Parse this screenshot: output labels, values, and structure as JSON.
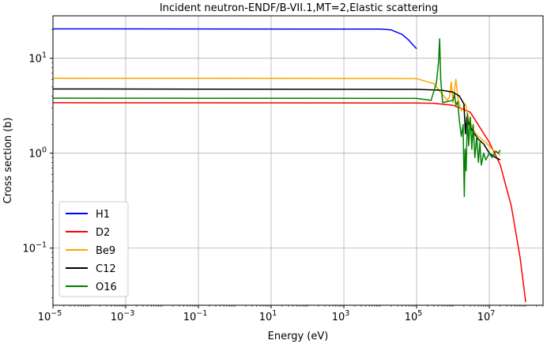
{
  "chart_data": {
    "type": "line",
    "title": "Incident neutron-ENDF/B-VII.1,MT=2,Elastic scattering",
    "xlabel": "Energy (eV)",
    "ylabel": "Cross section (b)",
    "xscale": "log",
    "yscale": "log",
    "xlim": [
      1e-05,
      300000000
    ],
    "ylim": [
      0.025,
      28
    ],
    "grid": true,
    "legend_position": "lower-left",
    "x_ticks": [
      {
        "value": 1e-05,
        "base": "10",
        "exp": "−5"
      },
      {
        "value": 0.001,
        "base": "10",
        "exp": "−3"
      },
      {
        "value": 0.1,
        "base": "10",
        "exp": "−1"
      },
      {
        "value": 10,
        "base": "10",
        "exp": "1"
      },
      {
        "value": 1000,
        "base": "10",
        "exp": "3"
      },
      {
        "value": 100000,
        "base": "10",
        "exp": "5"
      },
      {
        "value": 10000000,
        "base": "10",
        "exp": "7"
      }
    ],
    "y_ticks": [
      {
        "value": 10,
        "base": "10",
        "exp": "1"
      },
      {
        "value": 1,
        "base": "10",
        "exp": "0"
      },
      {
        "value": 0.1,
        "base": "10",
        "exp": "−1"
      }
    ],
    "series": [
      {
        "name": "H1",
        "color": "#0000ff",
        "points": [
          [
            1e-05,
            20.4
          ],
          [
            10000,
            20.3
          ],
          [
            20000,
            19.9
          ],
          [
            40000,
            17.8
          ],
          [
            60000,
            15.6
          ],
          [
            80000,
            13.8
          ],
          [
            100000,
            12.6
          ]
        ]
      },
      {
        "name": "D2",
        "color": "#ff0000",
        "points": [
          [
            1e-05,
            3.4
          ],
          [
            100000,
            3.38
          ],
          [
            300000,
            3.35
          ],
          [
            1000000,
            3.2
          ],
          [
            3000000,
            2.7
          ],
          [
            10000000,
            1.3
          ],
          [
            20000000,
            0.75
          ],
          [
            40000000,
            0.28
          ],
          [
            70000000,
            0.08
          ],
          [
            100000000,
            0.027
          ]
        ]
      },
      {
        "name": "Be9",
        "color": "#ffa500",
        "points": [
          [
            1e-05,
            6.15
          ],
          [
            100000,
            6.1
          ],
          [
            300000,
            5.4
          ],
          [
            500000,
            4.2
          ],
          [
            700000,
            3.6
          ],
          [
            800000,
            3.9
          ],
          [
            900000,
            5.6
          ],
          [
            1000000,
            3.4
          ],
          [
            1200000,
            6.0
          ],
          [
            1400000,
            3.6
          ],
          [
            1700000,
            2.8
          ],
          [
            2200000,
            3.3
          ],
          [
            2700000,
            2.3
          ],
          [
            3500000,
            1.8
          ],
          [
            5000000,
            1.5
          ],
          [
            8000000,
            1.3
          ],
          [
            12000000,
            1.1
          ],
          [
            20000000,
            0.95
          ]
        ]
      },
      {
        "name": "C12",
        "color": "#000000",
        "points": [
          [
            1e-05,
            4.75
          ],
          [
            100000,
            4.7
          ],
          [
            500000,
            4.6
          ],
          [
            1000000,
            4.4
          ],
          [
            1500000,
            4.0
          ],
          [
            2000000,
            3.3
          ],
          [
            2200000,
            1.6
          ],
          [
            2400000,
            2.4
          ],
          [
            2800000,
            2.0
          ],
          [
            3500000,
            1.7
          ],
          [
            5000000,
            1.4
          ],
          [
            7000000,
            1.25
          ],
          [
            10000000,
            1.0
          ],
          [
            15000000,
            0.9
          ],
          [
            20000000,
            0.85
          ]
        ]
      },
      {
        "name": "O16",
        "color": "#008000",
        "points": [
          [
            1e-05,
            3.8
          ],
          [
            100000,
            3.78
          ],
          [
            250000,
            3.6
          ],
          [
            350000,
            5.5
          ],
          [
            400000,
            9.0
          ],
          [
            430000,
            16.0
          ],
          [
            460000,
            6.0
          ],
          [
            520000,
            3.4
          ],
          [
            700000,
            3.5
          ],
          [
            1000000,
            3.6
          ],
          [
            1100000,
            4.2
          ],
          [
            1200000,
            3.2
          ],
          [
            1350000,
            3.5
          ],
          [
            1500000,
            2.2
          ],
          [
            1700000,
            1.5
          ],
          [
            1900000,
            2.0
          ],
          [
            2050000,
            0.35
          ],
          [
            2150000,
            1.1
          ],
          [
            2300000,
            0.65
          ],
          [
            2500000,
            2.6
          ],
          [
            2700000,
            1.2
          ],
          [
            3000000,
            2.4
          ],
          [
            3300000,
            1.1
          ],
          [
            3600000,
            2.0
          ],
          [
            4000000,
            0.9
          ],
          [
            4500000,
            1.5
          ],
          [
            5000000,
            0.8
          ],
          [
            5500000,
            1.3
          ],
          [
            6000000,
            0.75
          ],
          [
            7000000,
            1.0
          ],
          [
            8000000,
            0.85
          ],
          [
            10000000,
            1.0
          ],
          [
            12000000,
            0.9
          ],
          [
            15000000,
            1.05
          ],
          [
            18000000,
            1.0
          ],
          [
            20000000,
            1.08
          ]
        ]
      }
    ]
  }
}
